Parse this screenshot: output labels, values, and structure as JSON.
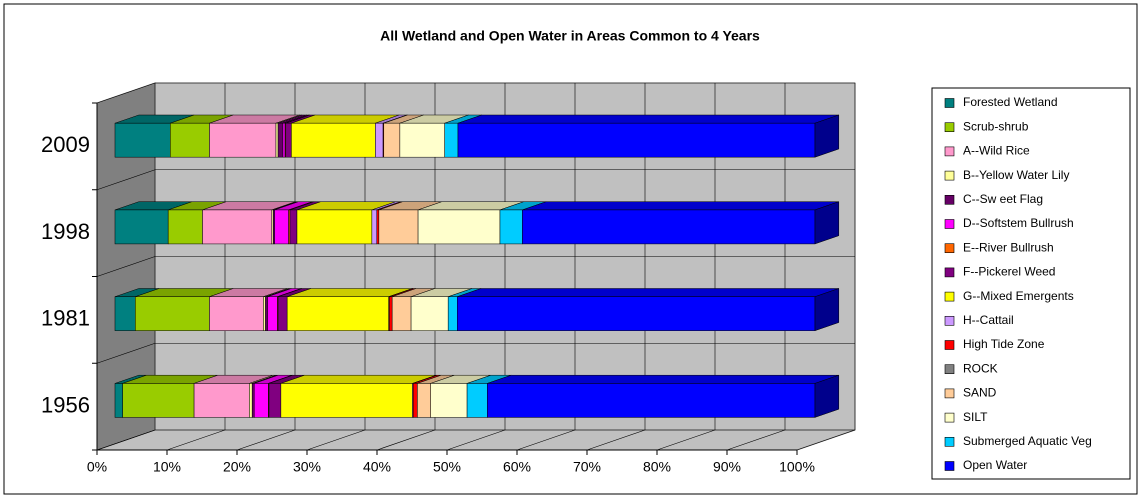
{
  "chart_data": {
    "type": "bar3d_stacked_h",
    "title": "All Wetland and Open Water in Areas Common to 4 Years",
    "categories": [
      "1956",
      "1981",
      "1998",
      "2009"
    ],
    "xlim": [
      0,
      100
    ],
    "xticks": [
      {
        "value": 0,
        "label": "0%"
      },
      {
        "value": 10,
        "label": "10%"
      },
      {
        "value": 20,
        "label": "20%"
      },
      {
        "value": 30,
        "label": "30%"
      },
      {
        "value": 40,
        "label": "40%"
      },
      {
        "value": 50,
        "label": "50%"
      },
      {
        "value": 60,
        "label": "60%"
      },
      {
        "value": 70,
        "label": "70%"
      },
      {
        "value": 80,
        "label": "80%"
      },
      {
        "value": 90,
        "label": "90%"
      },
      {
        "value": 100,
        "label": "100%"
      }
    ],
    "grid": true,
    "legend": "right",
    "series": [
      {
        "name": "Forested Wetland",
        "color": "#008080",
        "values": [
          1.1,
          2.9,
          7.6,
          7.9
        ]
      },
      {
        "name": "Scrub-shrub",
        "color": "#99CC00",
        "values": [
          10.2,
          10.6,
          4.9,
          5.6
        ]
      },
      {
        "name": "A--Wild Rice",
        "color": "#FF99CC",
        "values": [
          7.9,
          7.7,
          9.9,
          9.5
        ]
      },
      {
        "name": "B--Yellow  Water Lily",
        "color": "#FFFF99",
        "values": [
          0.4,
          0.3,
          0.2,
          0.3
        ]
      },
      {
        "name": "C--Sw eet Flag",
        "color": "#660066",
        "values": [
          0.3,
          0.3,
          0.2,
          0.7
        ]
      },
      {
        "name": "D--Softstem Bullrush",
        "color": "#FF00FF",
        "values": [
          2.0,
          1.4,
          2.0,
          0.3
        ]
      },
      {
        "name": "E--River Bullrush",
        "color": "#FF6600",
        "values": [
          0.1,
          0.1,
          0.2,
          0.1
        ]
      },
      {
        "name": "F--Pickerel Weed",
        "color": "#800080",
        "values": [
          1.7,
          1.3,
          1.0,
          0.8
        ]
      },
      {
        "name": "G--Mixed Emergents",
        "color": "#FFFF00",
        "values": [
          18.8,
          14.5,
          10.7,
          12.0
        ]
      },
      {
        "name": "H--Cattail",
        "color": "#CC99FF",
        "values": [
          0.1,
          0.1,
          0.7,
          1.1
        ]
      },
      {
        "name": "High Tide Zone",
        "color": "#FF0000",
        "values": [
          0.6,
          0.4,
          0.3,
          0.1
        ]
      },
      {
        "name": "ROCK",
        "color": "#808080",
        "values": [
          0,
          0,
          0,
          0
        ]
      },
      {
        "name": "SAND",
        "color": "#FFCC99",
        "values": [
          1.9,
          2.7,
          5.6,
          2.3
        ]
      },
      {
        "name": "SILT",
        "color": "#FFFFCC",
        "values": [
          5.2,
          5.3,
          11.7,
          6.4
        ]
      },
      {
        "name": "Submerged Aquatic Veg",
        "color": "#00CCFF",
        "values": [
          2.9,
          1.3,
          3.2,
          1.9
        ]
      },
      {
        "name": "Open Water",
        "color": "#0000FF",
        "values": [
          46.8,
          51.1,
          41.8,
          51.0
        ]
      }
    ]
  }
}
